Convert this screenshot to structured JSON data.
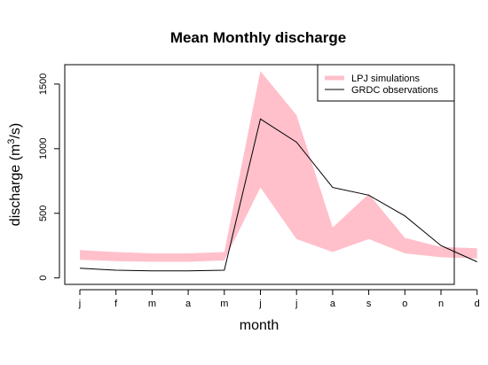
{
  "chart_data": {
    "type": "area",
    "title": "Mean Monthly discharge",
    "xlabel": "month",
    "ylabel": "discharge (m",
    "ylabel_sup": "3",
    "ylabel_end": "/s)",
    "categories": [
      "j",
      "f",
      "m",
      "a",
      "m",
      "j",
      "j",
      "a",
      "s",
      "o",
      "n",
      "d"
    ],
    "yticks": [
      0,
      500,
      1000,
      1500
    ],
    "ylim": [
      -50,
      1650
    ],
    "legend_position": "top-right",
    "colors": {
      "band": "#ffc0cb",
      "line": "#000000"
    },
    "series": [
      {
        "name": "LPJ simulations",
        "kind": "band",
        "lower": [
          140,
          130,
          125,
          125,
          135,
          700,
          300,
          200,
          300,
          190,
          160,
          150
        ],
        "upper": [
          215,
          200,
          190,
          190,
          200,
          1600,
          1260,
          390,
          650,
          310,
          240,
          230
        ]
      },
      {
        "name": "GRDC observations",
        "kind": "line",
        "values": [
          75,
          60,
          55,
          55,
          60,
          1230,
          1050,
          700,
          640,
          480,
          250,
          125
        ]
      }
    ]
  }
}
